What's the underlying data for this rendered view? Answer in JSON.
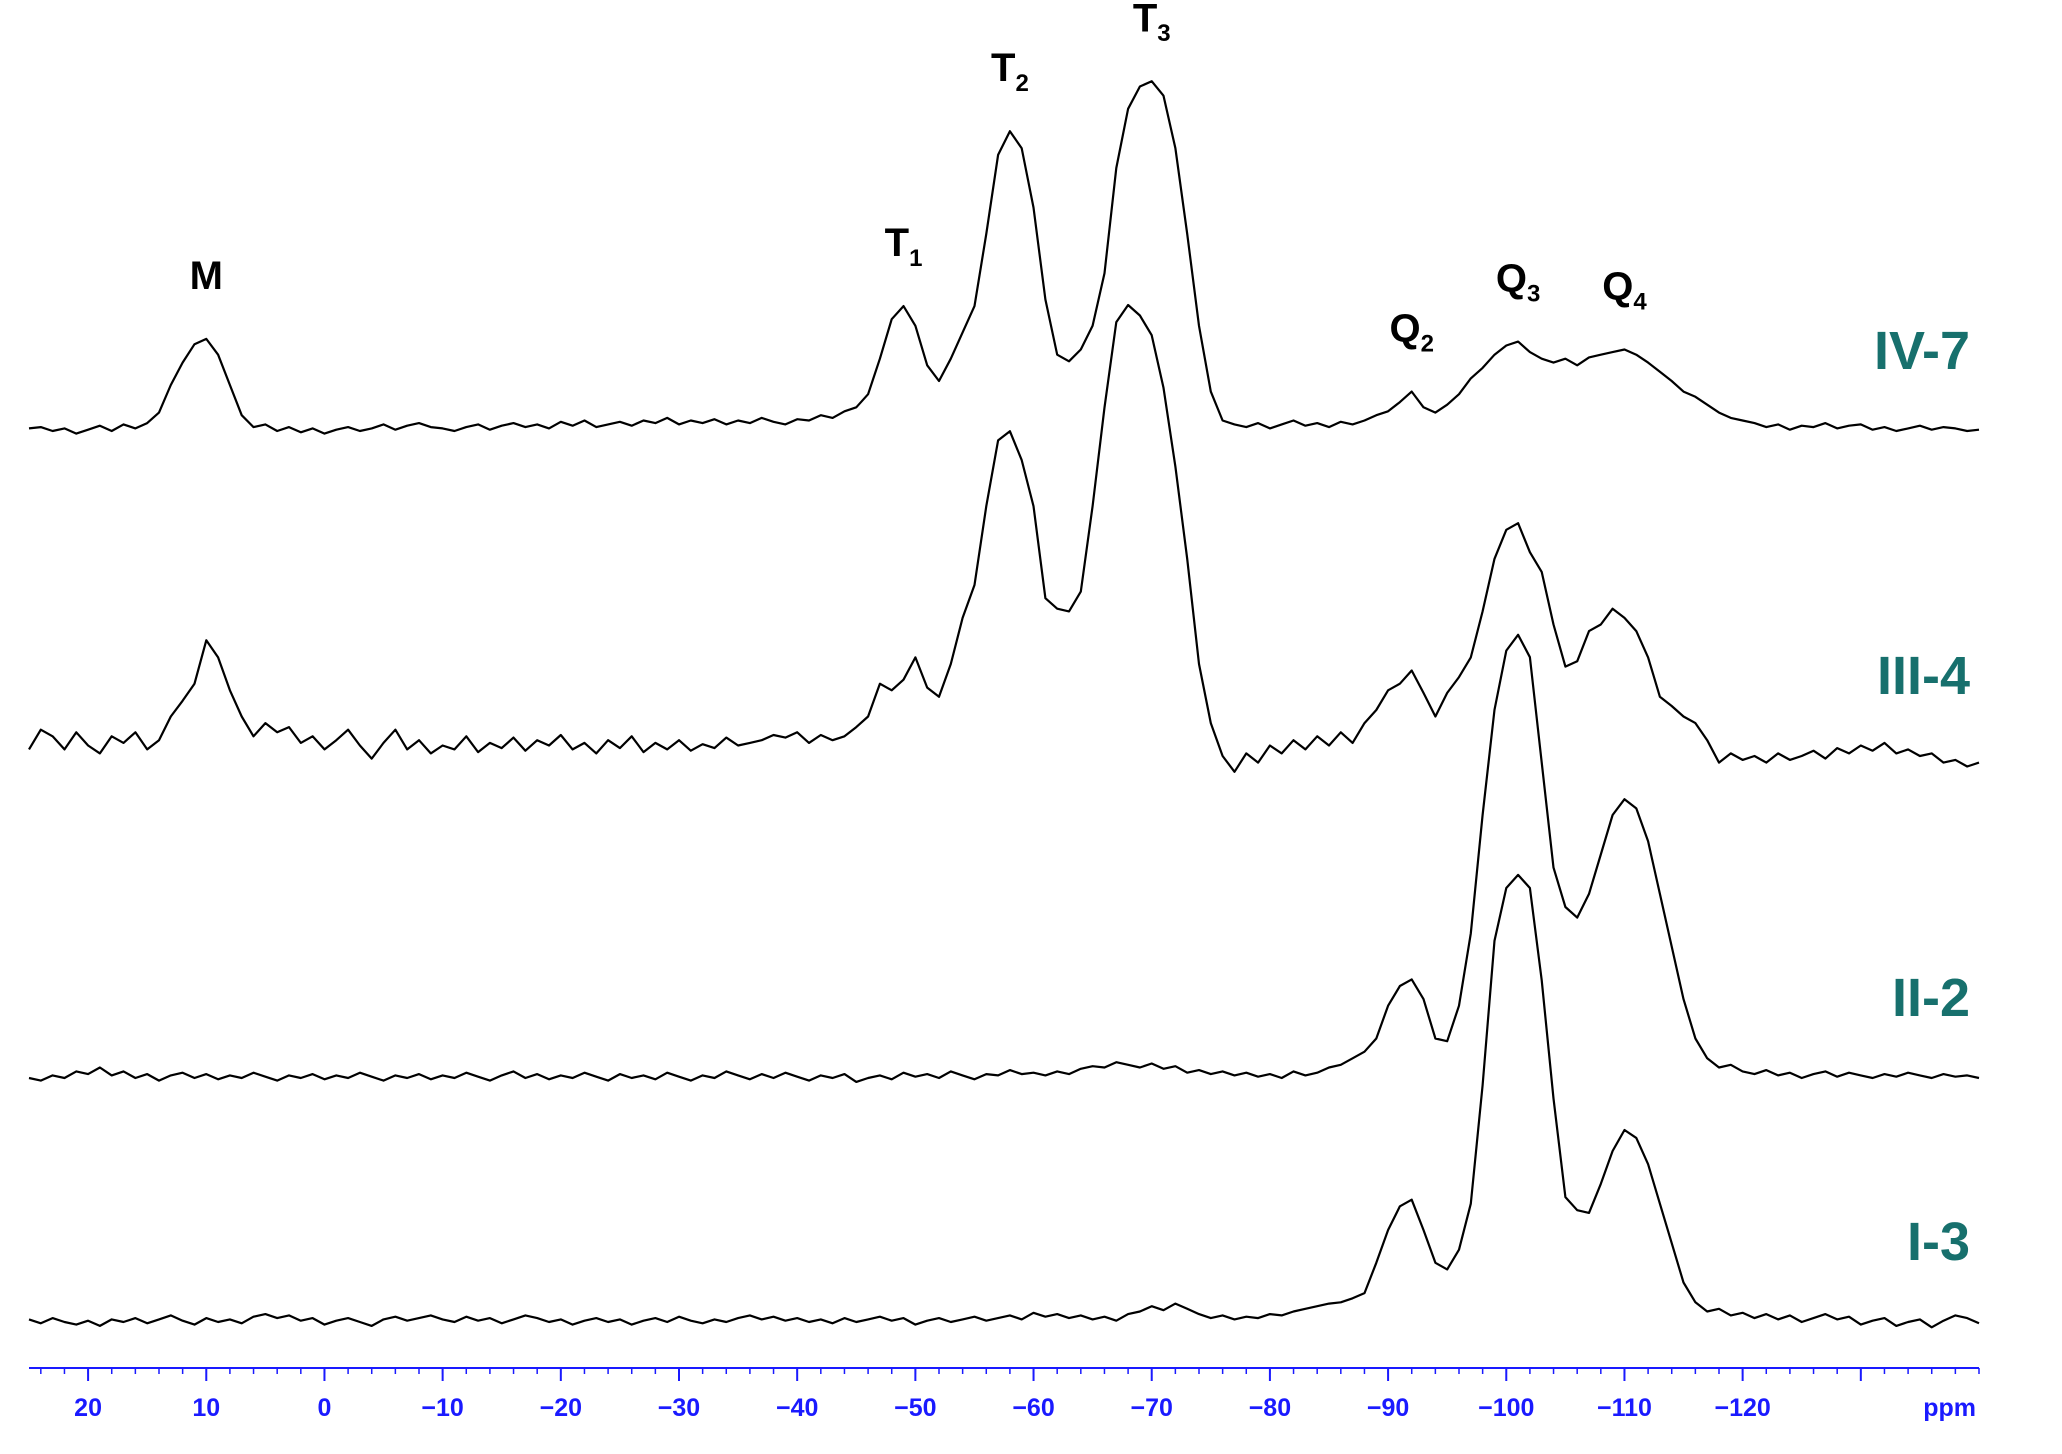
{
  "chart_data": {
    "type": "stacked-spectra",
    "xlabel": "ppm",
    "xlim": [
      25,
      -140
    ],
    "xticks": [
      20,
      10,
      0,
      {
        "value": -10,
        "label": "−10"
      },
      {
        "value": -20,
        "label": "−20"
      },
      {
        "value": -30,
        "label": "−30"
      },
      {
        "value": -40,
        "label": "−40"
      },
      {
        "value": -50,
        "label": "−50"
      },
      {
        "value": -60,
        "label": "−60"
      },
      {
        "value": -70,
        "label": "−70"
      },
      {
        "value": -80,
        "label": "−80"
      },
      {
        "value": -90,
        "label": "−90"
      },
      {
        "value": -100,
        "label": "−100"
      },
      {
        "value": -110,
        "label": "−110"
      },
      {
        "value": -120,
        "label": "−120"
      },
      {
        "value": -130,
        "label": null
      }
    ],
    "minor_tick_step": 2,
    "axis_color": "#1a1aff",
    "label_color": "#17706d",
    "x": [
      25,
      24,
      23,
      22,
      21,
      20,
      19,
      18,
      17,
      16,
      15,
      14,
      13,
      12,
      11,
      10,
      9,
      8,
      7,
      6,
      5,
      4,
      3,
      2,
      1,
      0,
      -1,
      -2,
      -3,
      -4,
      -5,
      -6,
      -7,
      -8,
      -9,
      -10,
      -11,
      -12,
      -13,
      -14,
      -15,
      -16,
      -17,
      -18,
      -19,
      -20,
      -21,
      -22,
      -23,
      -24,
      -25,
      -26,
      -27,
      -28,
      -29,
      -30,
      -31,
      -32,
      -33,
      -34,
      -35,
      -36,
      -37,
      -38,
      -39,
      -40,
      -41,
      -42,
      -43,
      -44,
      -45,
      -46,
      -47,
      -48,
      -49,
      -50,
      -51,
      -52,
      -53,
      -54,
      -55,
      -56,
      -57,
      -58,
      -59,
      -60,
      -61,
      -62,
      -63,
      -64,
      -65,
      -66,
      -67,
      -68,
      -69,
      -70,
      -71,
      -72,
      -73,
      -74,
      -75,
      -76,
      -77,
      -78,
      -79,
      -80,
      -81,
      -82,
      -83,
      -84,
      -85,
      -86,
      -87,
      -88,
      -89,
      -90,
      -91,
      -92,
      -93,
      -94,
      -95,
      -96,
      -97,
      -98,
      -99,
      -100,
      -101,
      -102,
      -103,
      -104,
      -105,
      -106,
      -107,
      -108,
      -109,
      -110,
      -111,
      -112,
      -113,
      -114,
      -115,
      -116,
      -117,
      -118,
      -119,
      -120,
      -121,
      -122,
      -123,
      -124,
      -125,
      -126,
      -127,
      -128,
      -129,
      -130,
      -131,
      -132,
      -133,
      -134,
      -135,
      -136,
      -137,
      -138,
      -139,
      -140
    ],
    "series": [
      {
        "name": "IV-7",
        "color": "#000000",
        "values": [
          2,
          3,
          0,
          2,
          -2,
          1,
          4,
          0,
          5,
          2,
          6,
          14,
          35,
          52,
          66,
          70,
          58,
          35,
          12,
          3,
          5,
          0,
          3,
          -1,
          2,
          -2,
          1,
          3,
          0,
          2,
          5,
          1,
          4,
          6,
          3,
          2,
          0,
          3,
          5,
          1,
          4,
          6,
          3,
          5,
          2,
          7,
          4,
          8,
          3,
          5,
          7,
          4,
          8,
          6,
          10,
          5,
          8,
          6,
          9,
          5,
          8,
          6,
          10,
          7,
          5,
          9,
          8,
          12,
          10,
          15,
          18,
          28,
          55,
          85,
          95,
          80,
          50,
          38,
          55,
          75,
          95,
          150,
          210,
          228,
          215,
          170,
          100,
          58,
          53,
          62,
          80,
          120,
          200,
          245,
          262,
          266,
          255,
          215,
          150,
          80,
          30,
          8,
          5,
          3,
          6,
          2,
          5,
          8,
          4,
          6,
          3,
          7,
          5,
          8,
          12,
          15,
          22,
          30,
          18,
          14,
          20,
          28,
          40,
          48,
          58,
          65,
          68,
          60,
          55,
          52,
          55,
          50,
          56,
          58,
          60,
          62,
          58,
          52,
          45,
          38,
          30,
          26,
          20,
          14,
          10,
          8,
          6,
          3,
          5,
          1,
          4,
          3,
          6,
          2,
          4,
          5,
          1,
          3,
          0,
          2,
          4,
          1,
          3,
          2,
          0,
          1
        ]
      },
      {
        "name": "III-4",
        "color": "#000000",
        "values": [
          5,
          20,
          15,
          5,
          18,
          8,
          2,
          15,
          10,
          18,
          5,
          12,
          30,
          42,
          55,
          88,
          75,
          50,
          30,
          15,
          25,
          18,
          22,
          10,
          15,
          5,
          12,
          20,
          8,
          -2,
          10,
          20,
          5,
          12,
          2,
          8,
          5,
          15,
          3,
          10,
          6,
          14,
          4,
          12,
          8,
          16,
          5,
          10,
          2,
          12,
          6,
          15,
          3,
          10,
          5,
          12,
          4,
          9,
          6,
          14,
          8,
          10,
          12,
          16,
          14,
          18,
          10,
          16,
          12,
          15,
          22,
          30,
          55,
          50,
          58,
          75,
          52,
          45,
          70,
          105,
          130,
          190,
          240,
          247,
          225,
          190,
          120,
          112,
          110,
          125,
          190,
          265,
          330,
          343,
          335,
          320,
          280,
          220,
          150,
          70,
          25,
          0,
          -12,
          2,
          -5,
          8,
          2,
          12,
          5,
          15,
          8,
          18,
          10,
          25,
          35,
          50,
          55,
          65,
          48,
          30,
          48,
          60,
          75,
          110,
          150,
          172,
          177,
          155,
          140,
          100,
          68,
          72,
          95,
          100,
          112,
          105,
          95,
          75,
          45,
          38,
          30,
          25,
          12,
          -5,
          2,
          -3,
          0,
          -5,
          2,
          -3,
          0,
          4,
          -2,
          6,
          2,
          8,
          4,
          10,
          2,
          5,
          0,
          2,
          -5,
          -3,
          -8,
          -5
        ]
      },
      {
        "name": "II-2",
        "color": "#000000",
        "values": [
          0,
          -2,
          2,
          0,
          5,
          3,
          8,
          2,
          5,
          0,
          3,
          -2,
          2,
          4,
          0,
          3,
          -1,
          2,
          0,
          4,
          1,
          -2,
          2,
          0,
          3,
          -1,
          2,
          0,
          4,
          1,
          -2,
          2,
          0,
          3,
          -1,
          2,
          0,
          4,
          1,
          -2,
          2,
          5,
          0,
          3,
          -1,
          2,
          0,
          4,
          1,
          -2,
          3,
          0,
          2,
          -1,
          4,
          1,
          -2,
          2,
          0,
          5,
          2,
          -1,
          3,
          0,
          4,
          1,
          -2,
          2,
          0,
          3,
          -3,
          0,
          2,
          -1,
          4,
          1,
          3,
          0,
          5,
          2,
          -1,
          3,
          2,
          6,
          3,
          4,
          2,
          5,
          3,
          7,
          9,
          8,
          12,
          10,
          8,
          11,
          7,
          9,
          4,
          6,
          3,
          5,
          2,
          4,
          1,
          3,
          0,
          5,
          2,
          4,
          8,
          10,
          15,
          20,
          30,
          55,
          70,
          75,
          60,
          30,
          28,
          55,
          110,
          200,
          280,
          325,
          337,
          320,
          240,
          160,
          130,
          122,
          140,
          170,
          200,
          212,
          205,
          180,
          140,
          100,
          60,
          30,
          15,
          8,
          10,
          5,
          3,
          6,
          2,
          4,
          0,
          3,
          5,
          1,
          4,
          2,
          0,
          3,
          1,
          4,
          2,
          0,
          3,
          1,
          2,
          0
        ]
      },
      {
        "name": "I-3",
        "color": "#000000",
        "values": [
          2,
          -1,
          3,
          0,
          -2,
          1,
          -3,
          2,
          0,
          3,
          -1,
          2,
          5,
          1,
          -2,
          3,
          0,
          2,
          -1,
          4,
          6,
          3,
          5,
          1,
          3,
          -2,
          1,
          3,
          0,
          -3,
          2,
          4,
          1,
          3,
          5,
          2,
          0,
          4,
          1,
          3,
          -1,
          2,
          5,
          3,
          0,
          2,
          -2,
          1,
          3,
          0,
          2,
          -2,
          1,
          3,
          0,
          4,
          1,
          -1,
          2,
          0,
          3,
          5,
          2,
          4,
          1,
          3,
          0,
          2,
          -1,
          3,
          0,
          2,
          4,
          1,
          3,
          -2,
          1,
          3,
          0,
          2,
          4,
          1,
          3,
          5,
          2,
          7,
          4,
          6,
          3,
          5,
          2,
          4,
          1,
          6,
          8,
          12,
          9,
          14,
          10,
          6,
          3,
          5,
          2,
          4,
          3,
          6,
          5,
          8,
          10,
          12,
          14,
          15,
          18,
          22,
          45,
          70,
          88,
          93,
          70,
          45,
          40,
          55,
          90,
          180,
          290,
          330,
          340,
          330,
          260,
          170,
          95,
          85,
          83,
          105,
          130,
          146,
          140,
          120,
          90,
          60,
          30,
          15,
          8,
          10,
          5,
          7,
          3,
          6,
          2,
          5,
          0,
          3,
          6,
          2,
          4,
          -2,
          1,
          3,
          -3,
          0,
          2,
          -4,
          1,
          5,
          3,
          -1
        ]
      }
    ],
    "annotations": [
      {
        "text": "M",
        "x": 10
      },
      {
        "text": "T",
        "sub": "1",
        "x": -49
      },
      {
        "text": "T",
        "sub": "2",
        "x": -58
      },
      {
        "text": "T",
        "sub": "3",
        "x": -70
      },
      {
        "text": "Q",
        "sub": "2",
        "x": -92
      },
      {
        "text": "Q",
        "sub": "3",
        "x": -101
      },
      {
        "text": "Q",
        "sub": "4",
        "x": -110
      }
    ]
  }
}
